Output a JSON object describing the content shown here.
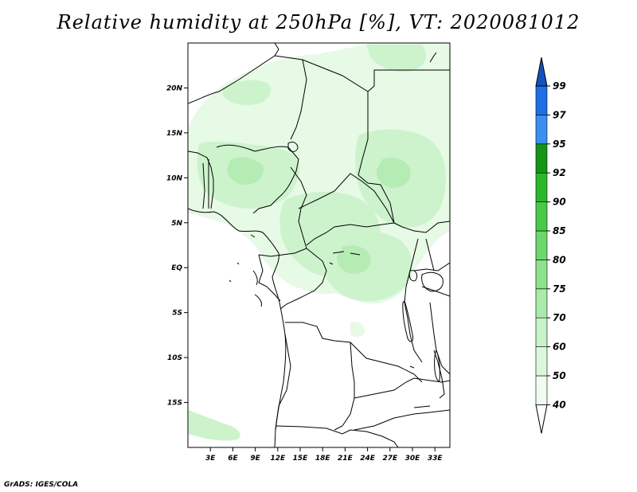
{
  "title": "Relative humidity at 250hPa [%], VT: 2020081012",
  "credit": "GrADS: IGES/COLA",
  "map": {
    "lon_range": [
      0,
      35
    ],
    "lat_range": [
      -20,
      25
    ],
    "lon_ticks": [
      {
        "value": 3,
        "label": "3E"
      },
      {
        "value": 6,
        "label": "6E"
      },
      {
        "value": 9,
        "label": "9E"
      },
      {
        "value": 12,
        "label": "12E"
      },
      {
        "value": 15,
        "label": "15E"
      },
      {
        "value": 18,
        "label": "18E"
      },
      {
        "value": 21,
        "label": "21E"
      },
      {
        "value": 24,
        "label": "24E"
      },
      {
        "value": 27,
        "label": "27E"
      },
      {
        "value": 30,
        "label": "30E"
      },
      {
        "value": 33,
        "label": "33E"
      }
    ],
    "lat_ticks": [
      {
        "value": 20,
        "label": "20N"
      },
      {
        "value": 15,
        "label": "15N"
      },
      {
        "value": 10,
        "label": "10N"
      },
      {
        "value": 5,
        "label": "5N"
      },
      {
        "value": 0,
        "label": "EQ"
      },
      {
        "value": -5,
        "label": "5S"
      },
      {
        "value": -10,
        "label": "10S"
      },
      {
        "value": -15,
        "label": "15S"
      }
    ]
  },
  "colorbar": {
    "levels": [
      "40",
      "50",
      "60",
      "70",
      "75",
      "80",
      "85",
      "90",
      "92",
      "95",
      "97",
      "99"
    ],
    "colors": [
      "#f0fcf0",
      "#dcf8dc",
      "#c8f2c8",
      "#aaeaaa",
      "#8ee28e",
      "#6cd86c",
      "#48ca48",
      "#2cb82c",
      "#149614",
      "#3c8ef0",
      "#1e6ee6",
      "#1450be"
    ]
  },
  "colors": {
    "humid_light": "#e6fae6",
    "humid_mid": "#cdf3cd",
    "humid_strong": "#b4ecb4",
    "border": "#000000"
  }
}
